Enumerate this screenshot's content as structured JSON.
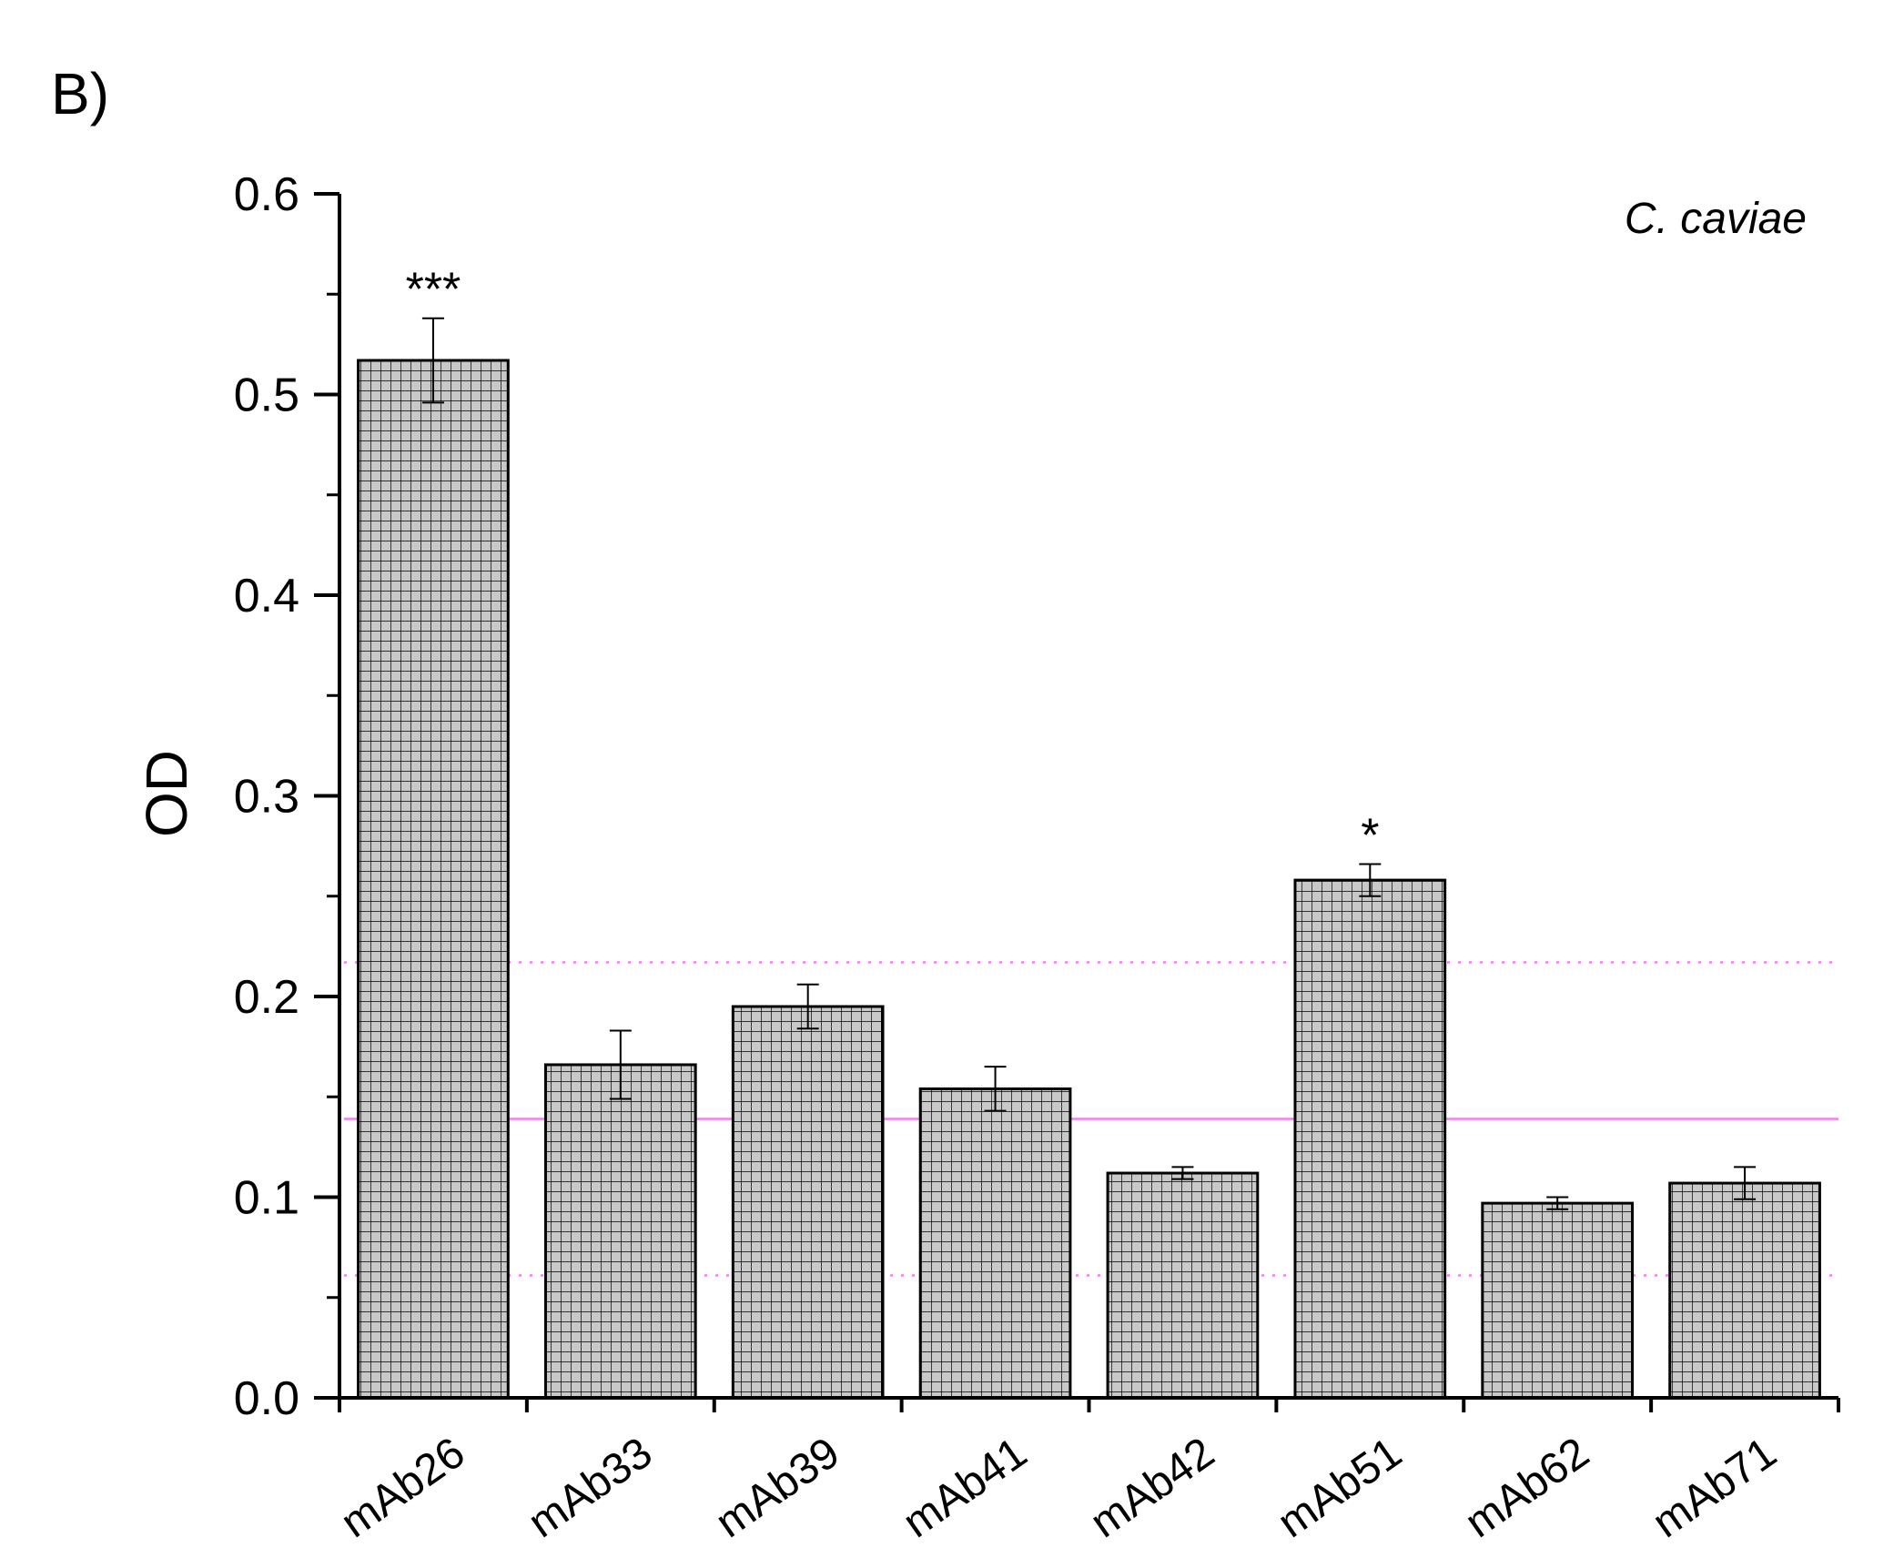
{
  "panel_label": "B)",
  "chart_data": {
    "type": "bar",
    "title": "",
    "xlabel": "",
    "ylabel": "OD",
    "annotation": "C. caviae",
    "ylim": [
      0,
      0.6
    ],
    "yticks": [
      "0.0",
      "0.1",
      "0.2",
      "0.3",
      "0.4",
      "0.5",
      "0.6"
    ],
    "categories": [
      "mAb26",
      "mAb33",
      "mAb39",
      "mAb41",
      "mAb42",
      "mAb51",
      "mAb62",
      "mAb71"
    ],
    "values": [
      0.517,
      0.166,
      0.195,
      0.154,
      0.112,
      0.258,
      0.097,
      0.107
    ],
    "errors": [
      0.021,
      0.017,
      0.011,
      0.011,
      0.003,
      0.008,
      0.003,
      0.008
    ],
    "significance": [
      "***",
      "",
      "",
      "",
      "",
      "*",
      "",
      ""
    ],
    "reference_lines": [
      {
        "value": 0.139,
        "style": "solid",
        "color": "#ee82ee"
      },
      {
        "value": 0.217,
        "style": "dotted",
        "color": "#ee82ee"
      },
      {
        "value": 0.061,
        "style": "dotted",
        "color": "#ee82ee"
      }
    ],
    "bar_fill": "#c8c8c8",
    "bar_pattern": "crosshatch",
    "grid": false,
    "legend": "none"
  }
}
